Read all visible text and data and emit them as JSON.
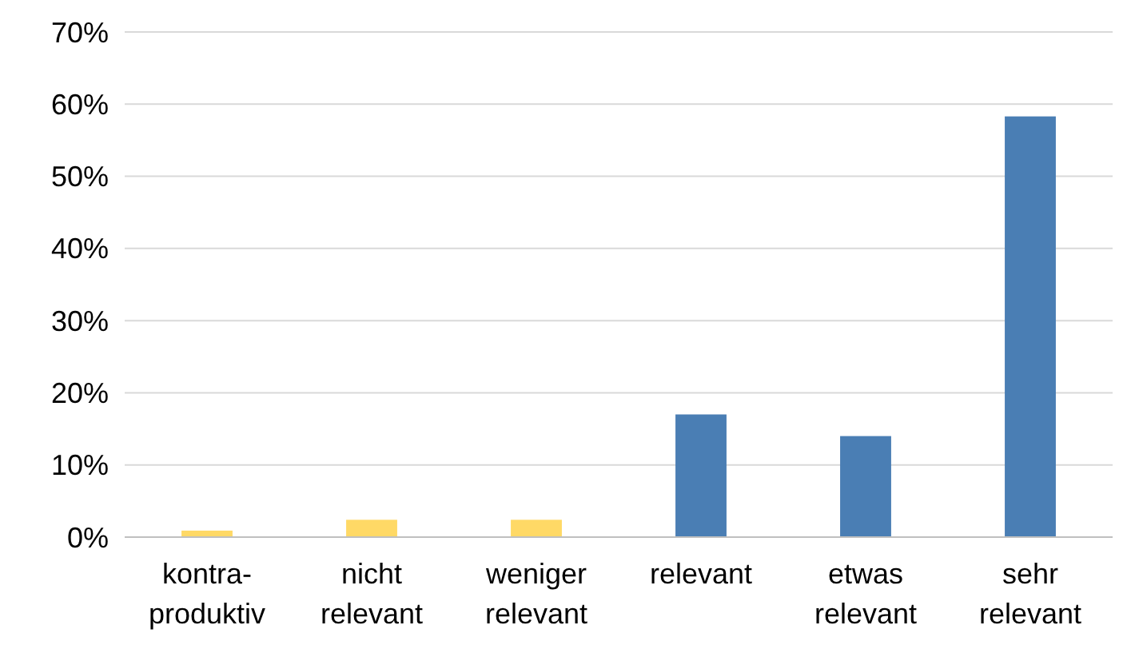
{
  "chart_data": {
    "type": "bar",
    "categories": [
      "kontra-\nproduktiv",
      "nicht\nrelevant",
      "weniger\nrelevant",
      "relevant",
      "etwas\nrelevant",
      "sehr\nrelevant"
    ],
    "values": [
      0.9,
      2.4,
      2.4,
      17,
      14,
      58.3
    ],
    "colors": [
      "#ffd966",
      "#ffd966",
      "#ffd966",
      "#4a7eb4",
      "#4a7eb4",
      "#4a7eb4"
    ],
    "ylim": [
      0,
      70
    ],
    "yticks": [
      {
        "value": 0,
        "label": "0%"
      },
      {
        "value": 10,
        "label": "10%"
      },
      {
        "value": 20,
        "label": "20%"
      },
      {
        "value": 30,
        "label": "30%"
      },
      {
        "value": 40,
        "label": "40%"
      },
      {
        "value": 50,
        "label": "50%"
      },
      {
        "value": 60,
        "label": "60%"
      },
      {
        "value": 70,
        "label": "70%"
      }
    ],
    "grid": "y"
  }
}
